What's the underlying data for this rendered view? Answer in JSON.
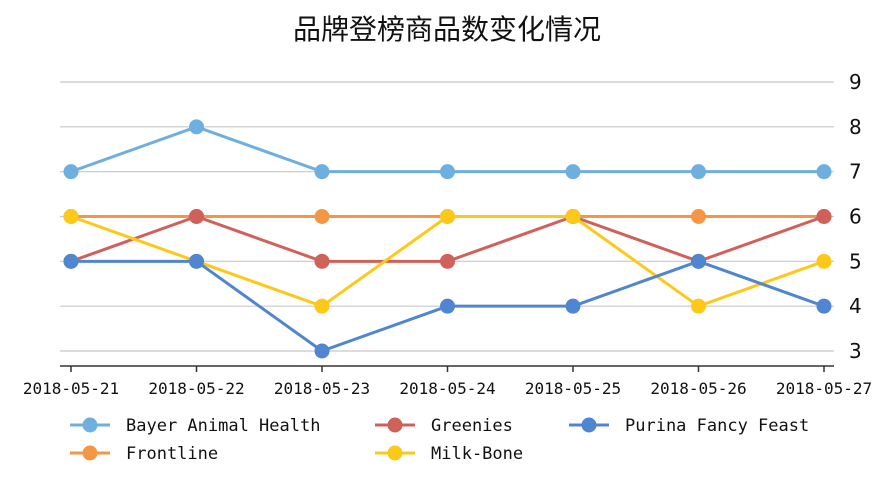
{
  "chart_data": {
    "type": "line",
    "title": "品牌登榜商品数变化情况",
    "xlabel": "",
    "ylabel": "",
    "categories": [
      "2018-05-21",
      "2018-05-22",
      "2018-05-23",
      "2018-05-24",
      "2018-05-25",
      "2018-05-26",
      "2018-05-27"
    ],
    "ylim": [
      3,
      9
    ],
    "yticks": [
      3,
      4,
      5,
      6,
      7,
      8,
      9
    ],
    "y_axis_side": "right",
    "grid": true,
    "legend_position": "bottom",
    "series": [
      {
        "name": "Bayer Animal Health",
        "color": "#6fafdf",
        "values": [
          7,
          8,
          7,
          7,
          7,
          7,
          7
        ]
      },
      {
        "name": "Frontline",
        "color": "#f39746",
        "values": [
          6,
          6,
          6,
          6,
          6,
          6,
          6
        ]
      },
      {
        "name": "Greenies",
        "color": "#d0605a",
        "values": [
          5,
          6,
          5,
          5,
          6,
          5,
          6
        ]
      },
      {
        "name": "Milk-Bone",
        "color": "#fcc91a",
        "values": [
          6,
          5,
          4,
          6,
          6,
          4,
          5
        ]
      },
      {
        "name": "Purina Fancy Feast",
        "color": "#4f86cf",
        "values": [
          5,
          5,
          3,
          4,
          4,
          5,
          4
        ]
      }
    ]
  }
}
